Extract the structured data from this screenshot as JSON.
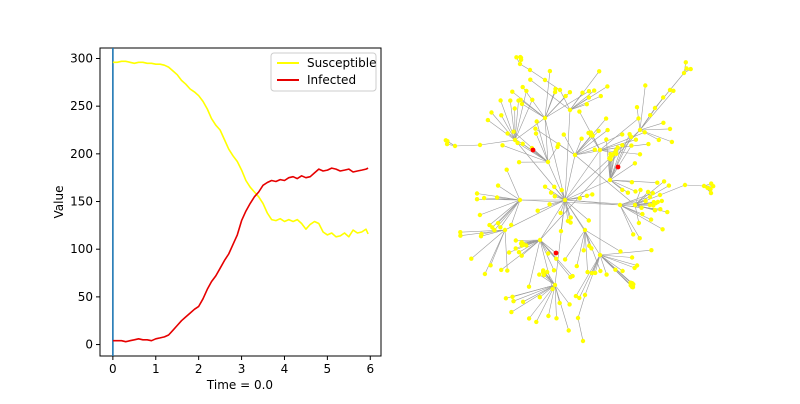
{
  "chart_data": [
    {
      "type": "line",
      "title": "",
      "xlabel": "Time = 0.0",
      "ylabel": "Value",
      "xlim": [
        -0.3,
        6.25
      ],
      "ylim": [
        -12,
        311
      ],
      "x_ticks": [
        0,
        1,
        2,
        3,
        4,
        5,
        6
      ],
      "y_ticks": [
        0,
        50,
        100,
        150,
        200,
        250,
        300
      ],
      "grid": false,
      "legend": "top-right",
      "vline_x": 0.0,
      "vline_color": "#1f77b4",
      "x": [
        0.0,
        0.1,
        0.2,
        0.3,
        0.4,
        0.5,
        0.6,
        0.7,
        0.8,
        0.9,
        1.0,
        1.1,
        1.2,
        1.3,
        1.4,
        1.5,
        1.6,
        1.7,
        1.8,
        1.9,
        2.0,
        2.1,
        2.2,
        2.3,
        2.4,
        2.5,
        2.6,
        2.7,
        2.8,
        2.9,
        3.0,
        3.1,
        3.2,
        3.3,
        3.4,
        3.5,
        3.6,
        3.7,
        3.8,
        3.9,
        4.0,
        4.1,
        4.2,
        4.3,
        4.4,
        4.5,
        4.6,
        4.7,
        4.8,
        4.9,
        5.0,
        5.1,
        5.2,
        5.3,
        5.4,
        5.5,
        5.6,
        5.7,
        5.8,
        5.9,
        5.95
      ],
      "series": [
        {
          "name": "Susceptible",
          "color": "#ffff00",
          "values": [
            296,
            296,
            297,
            297,
            296,
            295,
            296,
            296,
            295,
            295,
            294,
            294,
            293,
            291,
            287,
            283,
            277,
            273,
            268,
            265,
            261,
            255,
            247,
            237,
            230,
            225,
            215,
            205,
            198,
            192,
            183,
            172,
            165,
            160,
            155,
            148,
            138,
            131,
            130,
            132,
            129,
            131,
            129,
            131,
            127,
            121,
            126,
            129,
            127,
            118,
            115,
            117,
            113,
            114,
            117,
            113,
            120,
            117,
            118,
            121,
            116
          ]
        },
        {
          "name": "Infected",
          "color": "#e60000",
          "values": [
            4,
            4,
            4,
            3,
            4,
            5,
            6,
            5,
            5,
            4,
            6,
            7,
            8,
            10,
            15,
            20,
            25,
            29,
            33,
            37,
            40,
            48,
            58,
            66,
            72,
            80,
            88,
            95,
            105,
            115,
            130,
            140,
            148,
            155,
            160,
            167,
            170,
            172,
            171,
            173,
            172,
            175,
            176,
            174,
            177,
            175,
            176,
            180,
            184,
            182,
            183,
            185,
            184,
            182,
            183,
            184,
            181,
            182,
            183,
            184,
            185
          ]
        }
      ]
    },
    {
      "type": "network",
      "node_color": "#ffff00",
      "infected_node_color": "#ff0000",
      "edge_color": "#9a9a9a"
    }
  ]
}
